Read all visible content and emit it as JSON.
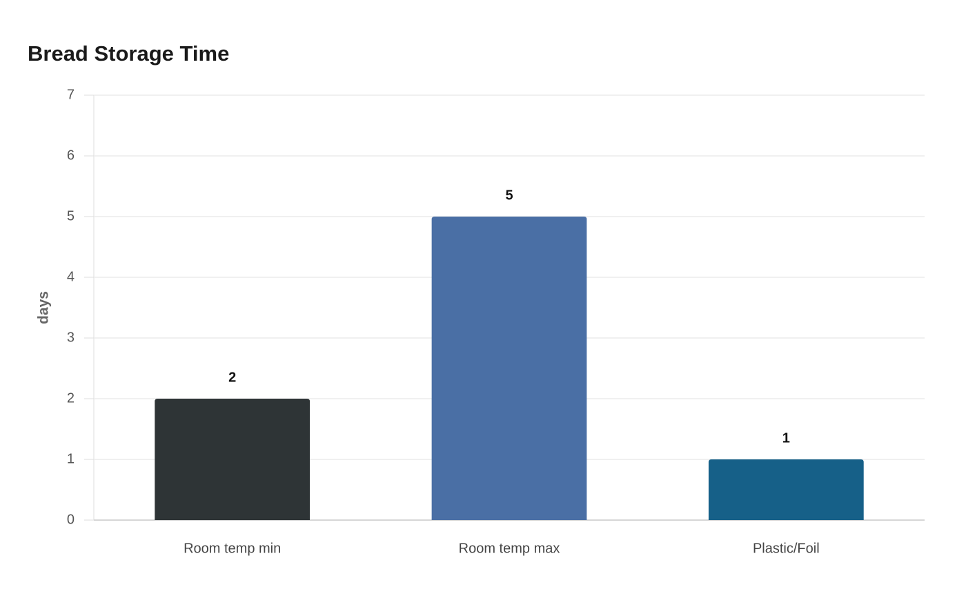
{
  "chart_data": {
    "type": "bar",
    "title": "Bread Storage Time",
    "y_label": "days",
    "categories": [
      "Room temp min",
      "Room temp max",
      "Plastic/Foil"
    ],
    "values": [
      2,
      5,
      1
    ],
    "colors": [
      "#2e3436",
      "#4a6fa5",
      "#166088"
    ],
    "ylim": [
      0,
      7
    ],
    "yticks": [
      0,
      1,
      2,
      3,
      4,
      5,
      6,
      7
    ],
    "grid": true
  }
}
